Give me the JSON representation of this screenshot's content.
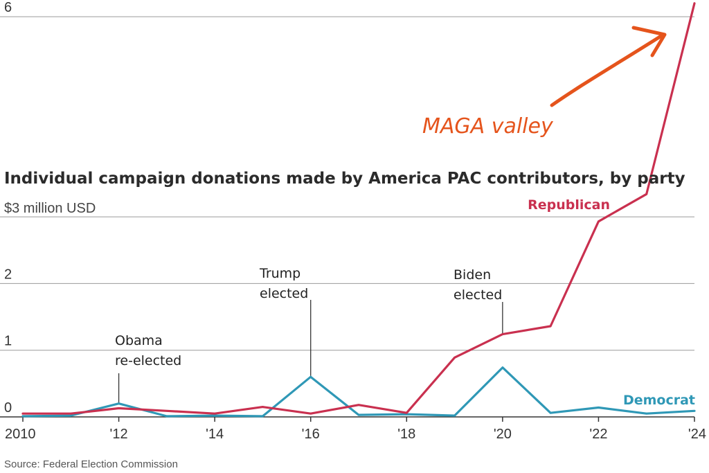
{
  "chart_data": {
    "type": "line",
    "title": "Individual campaign donations made by America PAC contributors, by party",
    "unit_label": "$3 million USD",
    "x": [
      2010,
      2011,
      2012,
      2013,
      2014,
      2015,
      2016,
      2017,
      2018,
      2019,
      2020,
      2021,
      2022,
      2023,
      2024
    ],
    "x_tick_values": [
      2010,
      2012,
      2014,
      2016,
      2018,
      2020,
      2022,
      2024
    ],
    "x_tick_labels": [
      "2010",
      "'12",
      "'14",
      "'16",
      "'18",
      "'20",
      "'22",
      "'24"
    ],
    "y_tick_values": [
      0,
      1,
      2,
      3,
      6
    ],
    "y_tick_labels": [
      "0",
      "1",
      "2",
      "",
      "6"
    ],
    "ylim": [
      0,
      6
    ],
    "xlim": [
      2010,
      2024
    ],
    "grid": true,
    "series": [
      {
        "name": "Republican",
        "color": "#c9304f",
        "values": [
          0.05,
          0.05,
          0.13,
          0.09,
          0.05,
          0.15,
          0.05,
          0.18,
          0.06,
          0.89,
          1.24,
          1.36,
          2.93,
          3.34,
          6.2
        ]
      },
      {
        "name": "Democrat",
        "color": "#2f98b6",
        "values": [
          0.01,
          0.02,
          0.2,
          0.01,
          0.02,
          0.01,
          0.6,
          0.03,
          0.04,
          0.02,
          0.74,
          0.06,
          0.14,
          0.05,
          0.09
        ]
      }
    ],
    "annotations": [
      {
        "lines": [
          "Obama",
          "re-elected"
        ],
        "x": 2012,
        "y": 0.2
      },
      {
        "lines": [
          "Trump",
          "elected"
        ],
        "x": 2016,
        "y": 0.6
      },
      {
        "lines": [
          "Biden",
          "elected"
        ],
        "x": 2020,
        "y": 1.24
      }
    ],
    "callout": {
      "text": "MAGA valley",
      "color": "#e5541c"
    },
    "source": "Source: Federal Election Commission"
  }
}
